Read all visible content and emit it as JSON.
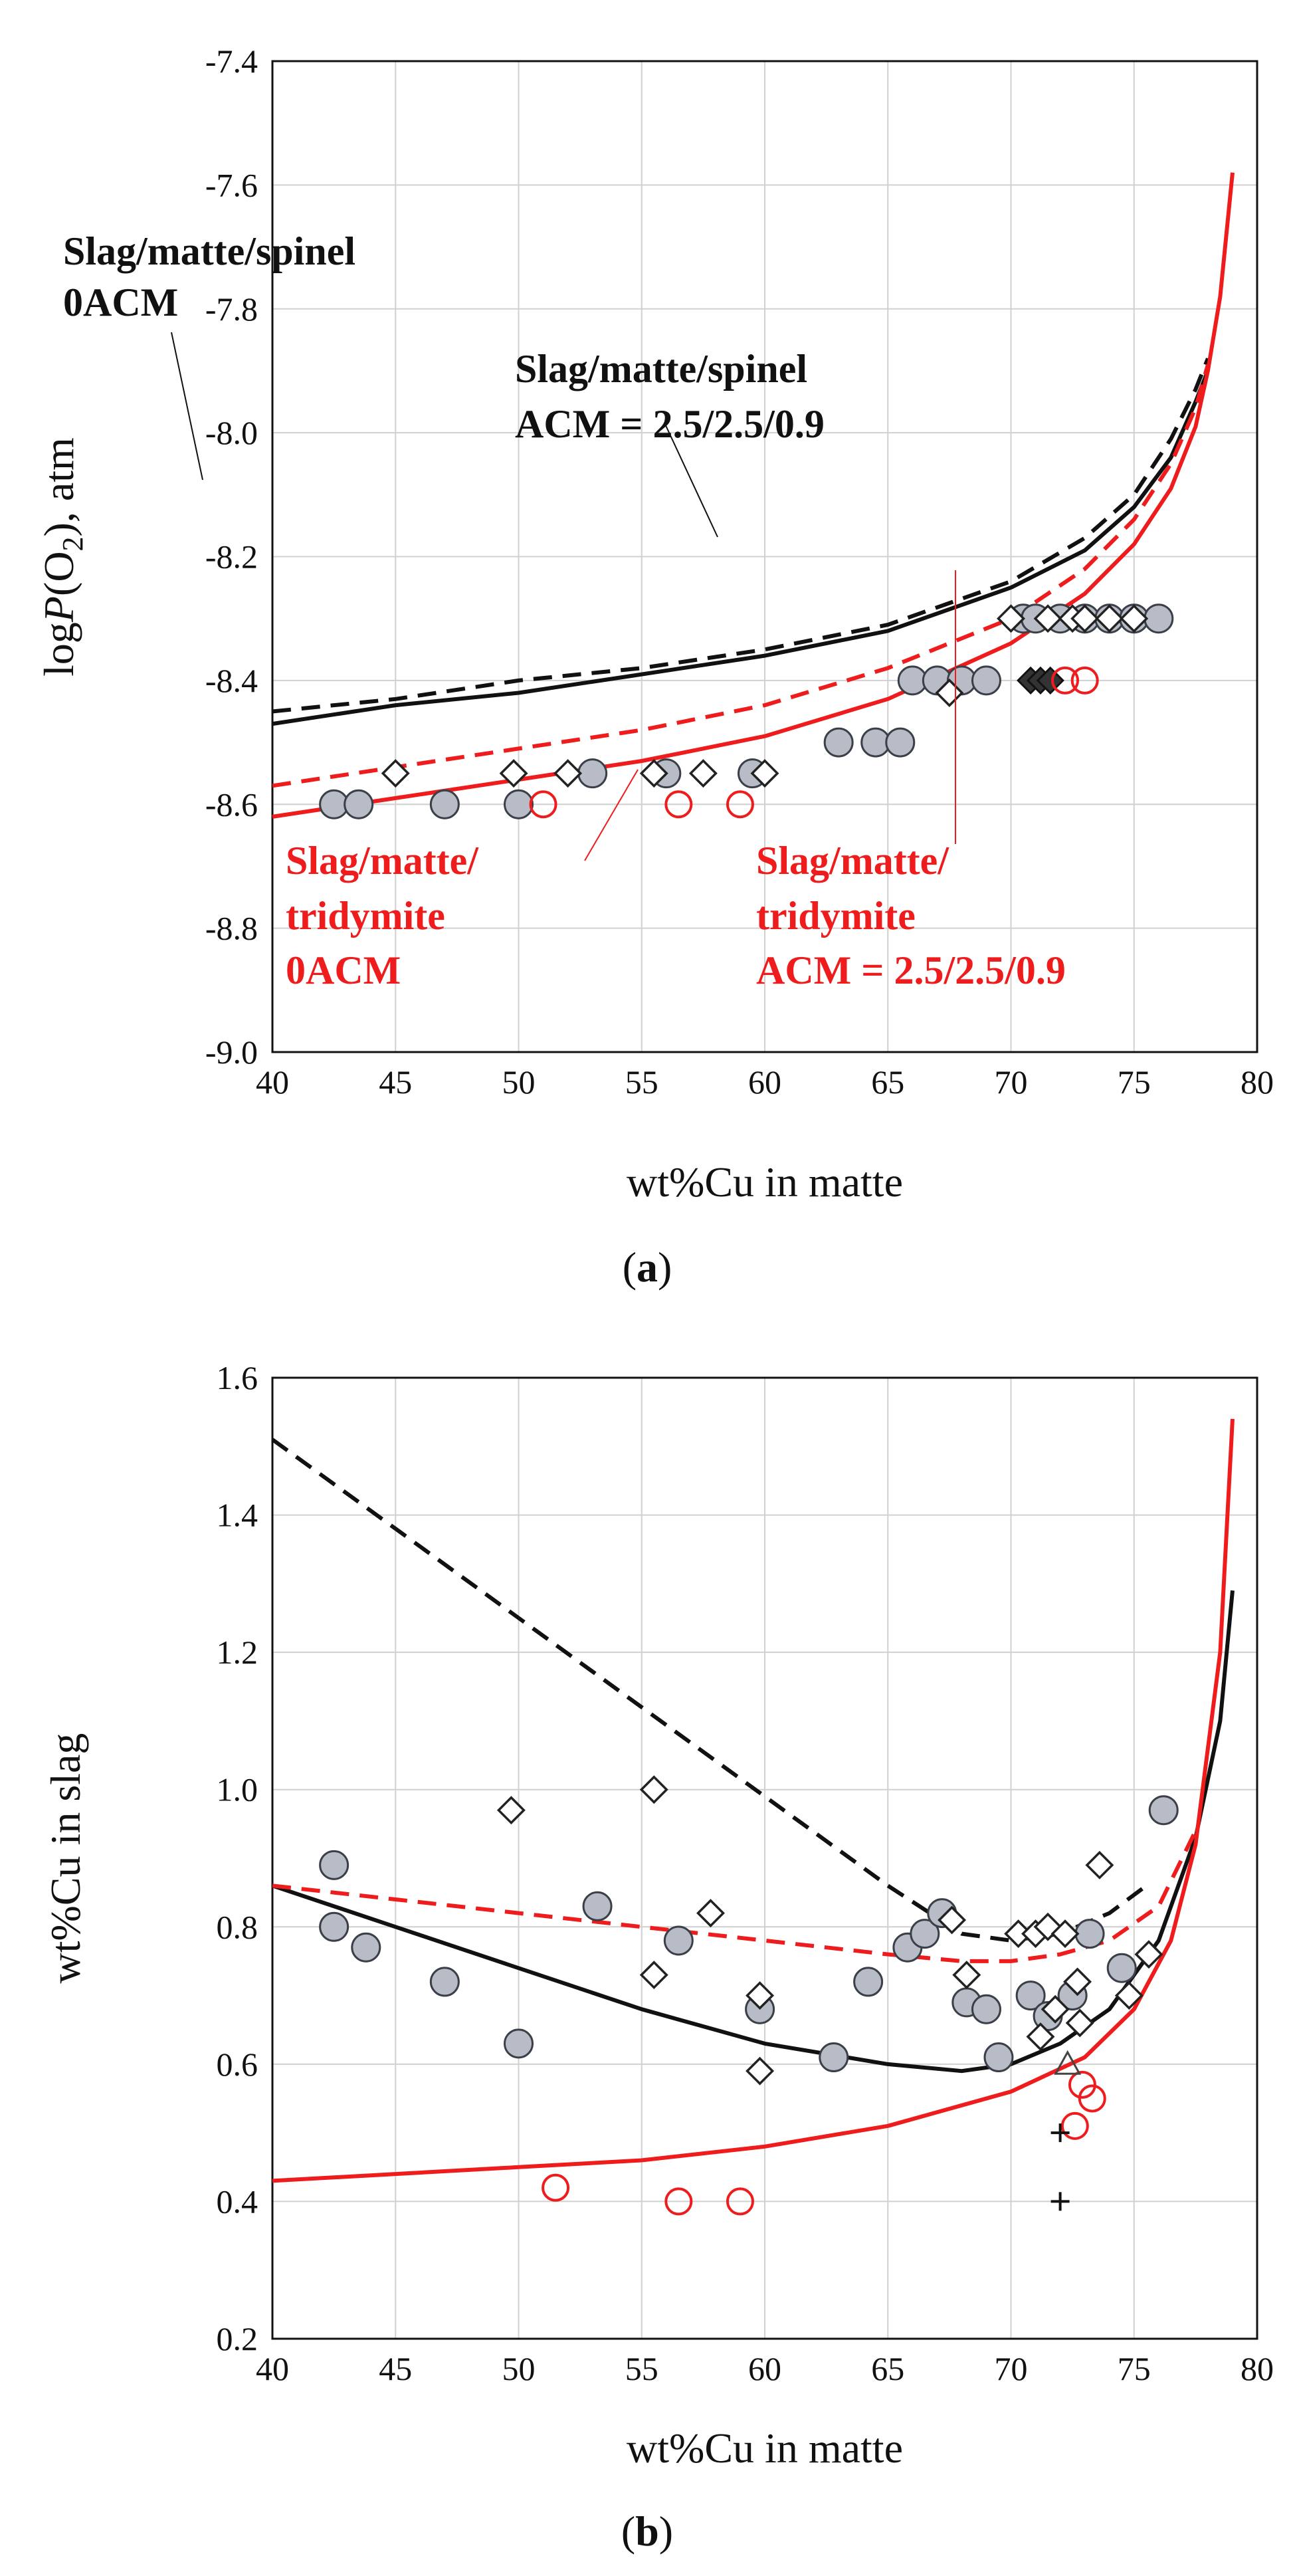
{
  "colors": {
    "black": "#111111",
    "red": "#ee1c1c",
    "grey_fill": "#b7bcc6",
    "grid": "#d0d0d0"
  },
  "chart_data": [
    {
      "panel": "a",
      "panel_label": {
        "open": "(",
        "letter": "a",
        "close": ")"
      },
      "type": "scatter",
      "xlabel": "wt%Cu in matte",
      "ylabel": {
        "prefix": "log",
        "italic": "P",
        "mid": "(O",
        "sub": "2",
        "suffix": "), atm"
      },
      "xlim": [
        40,
        80
      ],
      "ylim": [
        -9.0,
        -7.4
      ],
      "xticks": [
        40,
        45,
        50,
        55,
        60,
        65,
        70,
        75,
        80
      ],
      "yticks": [
        -9.0,
        -8.8,
        -8.6,
        -8.4,
        -8.2,
        -8.0,
        -7.8,
        -7.6,
        -7.4
      ],
      "ytick_labels": [
        "-9.0",
        "-8.8",
        "-8.6",
        "-8.4",
        "-8.2",
        "-8.0",
        "-7.8",
        "-7.6",
        "-7.4"
      ],
      "lines": [
        {
          "name": "Slag/matte/spinel 0ACM",
          "color": "black",
          "dash": true,
          "x": [
            40,
            45,
            50,
            55,
            60,
            65,
            70,
            73,
            75,
            76.5,
            77.5,
            78
          ],
          "y": [
            -8.45,
            -8.43,
            -8.4,
            -8.38,
            -8.35,
            -8.31,
            -8.24,
            -8.17,
            -8.1,
            -8.01,
            -7.93,
            -7.88
          ]
        },
        {
          "name": "Slag/matte/spinel ACM = 2.5/2.5/0.9",
          "color": "black",
          "dash": false,
          "x": [
            40,
            45,
            50,
            55,
            60,
            65,
            70,
            73,
            75,
            76.5,
            77.5,
            78
          ],
          "y": [
            -8.47,
            -8.44,
            -8.42,
            -8.39,
            -8.36,
            -8.32,
            -8.25,
            -8.19,
            -8.12,
            -8.04,
            -7.95,
            -7.9
          ]
        },
        {
          "name": "Slag/matte/tridymite 0ACM",
          "color": "red",
          "dash": true,
          "x": [
            40,
            45,
            50,
            55,
            60,
            65,
            70,
            73,
            75,
            76.5,
            77.5,
            78
          ],
          "y": [
            -8.57,
            -8.54,
            -8.51,
            -8.48,
            -8.44,
            -8.38,
            -8.3,
            -8.22,
            -8.14,
            -8.05,
            -7.96,
            -7.89
          ]
        },
        {
          "name": "Slag/matte/tridymite ACM = 2.5/2.5/0.9",
          "color": "red",
          "dash": false,
          "x": [
            40,
            45,
            50,
            55,
            60,
            65,
            70,
            73,
            75,
            76.5,
            77.5,
            78,
            78.5,
            79
          ],
          "y": [
            -8.62,
            -8.59,
            -8.56,
            -8.53,
            -8.49,
            -8.43,
            -8.34,
            -8.26,
            -8.18,
            -8.09,
            -7.99,
            -7.9,
            -7.78,
            -7.58
          ]
        }
      ],
      "points": {
        "grey_circles": {
          "x": [
            42.5,
            43.5,
            47,
            50,
            53,
            56,
            59.5,
            63,
            64.5,
            65.5,
            66,
            67,
            68,
            69,
            70.5,
            71,
            72,
            73,
            74,
            75,
            76
          ],
          "y": [
            -8.6,
            -8.6,
            -8.6,
            -8.6,
            -8.55,
            -8.55,
            -8.55,
            -8.5,
            -8.5,
            -8.5,
            -8.4,
            -8.4,
            -8.4,
            -8.4,
            -8.3,
            -8.3,
            -8.3,
            -8.3,
            -8.3,
            -8.3,
            -8.3
          ]
        },
        "open_diamonds": {
          "x": [
            45,
            49.8,
            52,
            55.5,
            57.5,
            60,
            67.5,
            70,
            71.5,
            72.5,
            73,
            74,
            75
          ],
          "y": [
            -8.55,
            -8.55,
            -8.55,
            -8.55,
            -8.55,
            -8.55,
            -8.42,
            -8.3,
            -8.3,
            -8.3,
            -8.3,
            -8.3,
            -8.3
          ]
        },
        "dark_diamonds": {
          "x": [
            70.8,
            71.2,
            71.6
          ],
          "y": [
            -8.4,
            -8.4,
            -8.4
          ]
        },
        "red_circles": {
          "x": [
            51,
            56.5,
            59,
            72.2,
            73
          ],
          "y": [
            -8.6,
            -8.6,
            -8.6,
            -8.4,
            -8.4
          ]
        }
      },
      "annotations": [
        {
          "color": "black",
          "lines": [
            "Slag/matte/spinel",
            "0ACM"
          ]
        },
        {
          "color": "black",
          "lines": [
            "Slag/matte/spinel",
            "ACM = 2.5/2.5/0.9"
          ]
        },
        {
          "color": "red",
          "lines": [
            "Slag/matte/",
            "tridymite",
            "0ACM"
          ]
        },
        {
          "color": "red",
          "lines": [
            "Slag/matte/",
            "tridymite",
            "ACM = 2.5/2.5/0.9"
          ]
        }
      ]
    },
    {
      "panel": "b",
      "panel_label": {
        "open": "(",
        "letter": "b",
        "close": ")"
      },
      "type": "scatter",
      "xlabel": "wt%Cu in matte",
      "ylabel": "wt%Cu in slag",
      "xlim": [
        40,
        80
      ],
      "ylim": [
        0.2,
        1.6
      ],
      "xticks": [
        40,
        45,
        50,
        55,
        60,
        65,
        70,
        75,
        80
      ],
      "yticks": [
        0.2,
        0.4,
        0.6,
        0.8,
        1.0,
        1.2,
        1.4,
        1.6
      ],
      "ytick_labels": [
        "0.2",
        "0.4",
        "0.6",
        "0.8",
        "1.0",
        "1.2",
        "1.4",
        "1.6"
      ],
      "lines": [
        {
          "name": "Slag/matte/spinel 0ACM",
          "color": "black",
          "dash": true,
          "x": [
            40,
            45,
            50,
            55,
            60,
            65,
            68,
            70,
            72,
            74,
            75.5
          ],
          "y": [
            1.51,
            1.38,
            1.25,
            1.12,
            0.99,
            0.86,
            0.79,
            0.78,
            0.79,
            0.82,
            0.86
          ]
        },
        {
          "name": "Slag/matte/spinel ACM = 2.5/2.5/0.9",
          "color": "black",
          "dash": false,
          "x": [
            40,
            45,
            50,
            55,
            60,
            65,
            68,
            70,
            72,
            74,
            76,
            77.5,
            78.5,
            79
          ],
          "y": [
            0.86,
            0.8,
            0.74,
            0.68,
            0.63,
            0.6,
            0.59,
            0.6,
            0.63,
            0.68,
            0.78,
            0.93,
            1.1,
            1.29
          ]
        },
        {
          "name": "Slag/matte/tridymite 0ACM",
          "color": "red",
          "dash": true,
          "x": [
            40,
            45,
            50,
            55,
            60,
            65,
            68,
            70,
            72,
            74,
            76,
            77.5
          ],
          "y": [
            0.86,
            0.84,
            0.82,
            0.8,
            0.78,
            0.76,
            0.75,
            0.75,
            0.76,
            0.78,
            0.83,
            0.94
          ]
        },
        {
          "name": "Slag/matte/tridymite ACM = 2.5/2.5/0.9",
          "color": "red",
          "dash": false,
          "x": [
            40,
            45,
            50,
            55,
            60,
            65,
            70,
            73,
            75,
            76.5,
            77.5,
            78.5,
            79
          ],
          "y": [
            0.43,
            0.44,
            0.45,
            0.46,
            0.48,
            0.51,
            0.56,
            0.61,
            0.68,
            0.78,
            0.92,
            1.2,
            1.54
          ]
        }
      ],
      "points": {
        "grey_circles": {
          "x": [
            42.5,
            42.5,
            43.8,
            47,
            50,
            53.2,
            56.5,
            59.8,
            62.8,
            64.2,
            65.8,
            66.5,
            67.2,
            68.2,
            69,
            69.5,
            70.8,
            71.5,
            72.5,
            73.2,
            74.5,
            76.2
          ],
          "y": [
            0.89,
            0.8,
            0.77,
            0.72,
            0.63,
            0.83,
            0.78,
            0.68,
            0.61,
            0.72,
            0.77,
            0.79,
            0.82,
            0.69,
            0.68,
            0.61,
            0.7,
            0.67,
            0.7,
            0.79,
            0.74,
            0.97
          ]
        },
        "open_diamonds": {
          "x": [
            49.7,
            55.5,
            55.5,
            57.8,
            59.8,
            59.8,
            67.6,
            68.2,
            70.3,
            71,
            71.5,
            72.2,
            71.2,
            71.8,
            72.7,
            73.6,
            74.8,
            75.6,
            72.8
          ],
          "y": [
            0.97,
            1.0,
            0.73,
            0.82,
            0.7,
            0.59,
            0.81,
            0.73,
            0.79,
            0.79,
            0.8,
            0.79,
            0.64,
            0.68,
            0.72,
            0.89,
            0.7,
            0.76,
            0.66
          ]
        },
        "red_circles": {
          "x": [
            51.5,
            56.5,
            59,
            72.6,
            72.9,
            73.3
          ],
          "y": [
            0.42,
            0.4,
            0.4,
            0.51,
            0.57,
            0.55
          ]
        },
        "plus_marks": {
          "x": [
            72,
            72
          ],
          "y": [
            0.5,
            0.4
          ]
        },
        "triangle": {
          "x": [
            72.3
          ],
          "y": [
            0.6
          ]
        }
      }
    }
  ]
}
